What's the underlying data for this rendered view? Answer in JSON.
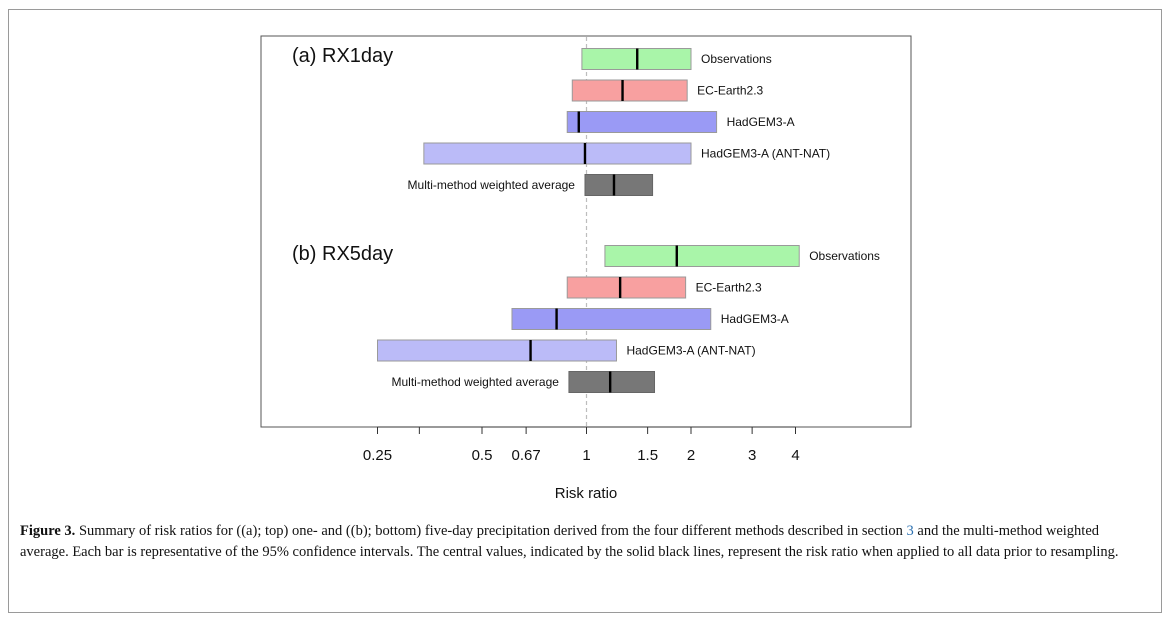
{
  "chart_data": {
    "type": "bar",
    "subtype": "horizontal-interval",
    "x_scale": "log",
    "xlabel": "Risk ratio",
    "x_ticks": [
      0.25,
      0.5,
      0.67,
      1,
      1.5,
      2,
      3,
      4
    ],
    "x_tick_labels": [
      "0.25",
      "0.5",
      "0.67",
      "1",
      "1.5",
      "2",
      "3",
      "4"
    ],
    "x_minor_ticks": [
      0.33
    ],
    "xlim": [
      0.25,
      4
    ],
    "reference_line": 1,
    "panels": [
      {
        "title": "(a) RX1day",
        "bars": [
          {
            "label": "Observations",
            "low": 0.97,
            "high": 2.0,
            "central": 1.4,
            "color": "#a9f5a9",
            "label_side": "right"
          },
          {
            "label": "EC-Earth2.3",
            "low": 0.91,
            "high": 1.95,
            "central": 1.27,
            "color": "#f8a0a0",
            "label_side": "right"
          },
          {
            "label": "HadGEM3-A",
            "low": 0.88,
            "high": 2.37,
            "central": 0.95,
            "color": "#9a9af5",
            "label_side": "right"
          },
          {
            "label": "HadGEM3-A (ANT-NAT)",
            "low": 0.34,
            "high": 2.0,
            "central": 0.99,
            "color": "#bbbbf8",
            "label_side": "right"
          },
          {
            "label": "Multi-method weighted average",
            "low": 0.99,
            "high": 1.55,
            "central": 1.2,
            "color": "#777777",
            "label_side": "left"
          }
        ]
      },
      {
        "title": "(b) RX5day",
        "bars": [
          {
            "label": "Observations",
            "low": 1.13,
            "high": 4.1,
            "central": 1.82,
            "color": "#a9f5a9",
            "label_side": "right"
          },
          {
            "label": "EC-Earth2.3",
            "low": 0.88,
            "high": 1.93,
            "central": 1.25,
            "color": "#f8a0a0",
            "label_side": "right"
          },
          {
            "label": "HadGEM3-A",
            "low": 0.61,
            "high": 2.28,
            "central": 0.82,
            "color": "#9a9af5",
            "label_side": "right"
          },
          {
            "label": "HadGEM3-A (ANT-NAT)",
            "low": 0.25,
            "high": 1.22,
            "central": 0.69,
            "color": "#bbbbf8",
            "label_side": "right"
          },
          {
            "label": "Multi-method weighted average",
            "low": 0.89,
            "high": 1.57,
            "central": 1.17,
            "color": "#777777",
            "label_side": "left"
          }
        ]
      }
    ],
    "grid": false,
    "legend": "none"
  },
  "caption": {
    "lead": "Figure 3.",
    "part1": " Summary of risk ratios for ((a); top) one- and ((b); bottom) five-day precipitation derived from the four different methods described in section ",
    "ref": "3",
    "part2": " and the multi-method weighted average. Each bar is representative of the 95% confidence intervals. The central values, indicated by the solid black lines, represent the risk ratio when applied to all data prior to resampling."
  }
}
